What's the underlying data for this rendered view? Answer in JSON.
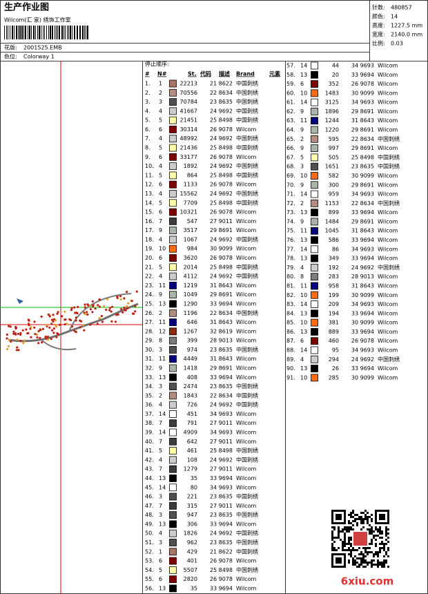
{
  "header": {
    "title": "生产作业图",
    "studio": "Wilcom(汇 家) 绣饰工作室",
    "design_label": "花版:",
    "design": "2001525.EMB",
    "colorway_label": "色位:",
    "colorway": "Colorway 1"
  },
  "info": [
    {
      "label": "针数:",
      "value": "480857"
    },
    {
      "label": "颜色:",
      "value": "14"
    },
    {
      "label": "高度:",
      "value": "1227.5 mm"
    },
    {
      "label": "宽度:",
      "value": "2140.0 mm"
    },
    {
      "label": "比例:",
      "value": "0.03"
    }
  ],
  "table": {
    "caption": "停止顺序:",
    "columns": [
      "#",
      "N#",
      "St.",
      "代码",
      "描述",
      "Brand",
      "元素"
    ],
    "needle_colors": {
      "1": "#a87464",
      "2": "#b48c80",
      "3": "#505050",
      "4": "#cccccc",
      "5": "#ffffa8",
      "6": "#800000",
      "7": "#3c3c3c",
      "8": "#7c7c7c",
      "9": "#a8b4a8",
      "10": "#ff6a10",
      "11": "#000080",
      "12": "#8c2a10",
      "13": "#000000",
      "14": "#ffffff"
    },
    "rows": [
      [
        "1.",
        "1",
        "22213",
        "21 8622",
        "中国刺绣"
      ],
      [
        "2.",
        "2",
        "70556",
        "22 8634",
        "中国刺绣"
      ],
      [
        "3.",
        "3",
        "70784",
        "23 8635",
        "中国刺绣"
      ],
      [
        "4.",
        "4",
        "41667",
        "24 9692",
        "中国刺绣"
      ],
      [
        "5.",
        "5",
        "21451",
        "25 8498",
        "中国刺绣"
      ],
      [
        "6.",
        "6",
        "30314",
        "26 9078",
        "Wilcom"
      ],
      [
        "7.",
        "4",
        "48992",
        "24 9692",
        "中国刺绣"
      ],
      [
        "8.",
        "5",
        "21436",
        "25 8498",
        "中国刺绣"
      ],
      [
        "9.",
        "6",
        "33177",
        "26 9078",
        "Wilcom"
      ],
      [
        "10.",
        "4",
        "1892",
        "24 9692",
        "中国刺绣"
      ],
      [
        "11.",
        "5",
        "864",
        "25 8498",
        "中国刺绣"
      ],
      [
        "12.",
        "6",
        "1133",
        "26 9078",
        "Wilcom"
      ],
      [
        "13.",
        "4",
        "15562",
        "24 9692",
        "中国刺绣"
      ],
      [
        "14.",
        "5",
        "7709",
        "25 8498",
        "中国刺绣"
      ],
      [
        "15.",
        "6",
        "10321",
        "26 9078",
        "Wilcom"
      ],
      [
        "16.",
        "7",
        "547",
        "27 9011",
        "Wilcom"
      ],
      [
        "17.",
        "9",
        "3517",
        "29 8691",
        "Wilcom"
      ],
      [
        "18.",
        "4",
        "1067",
        "24 9692",
        "中国刺绣"
      ],
      [
        "19.",
        "10",
        "984",
        "30 9099",
        "Wilcom"
      ],
      [
        "20.",
        "6",
        "3620",
        "26 9078",
        "Wilcom"
      ],
      [
        "21.",
        "5",
        "2014",
        "25 8498",
        "中国刺绣"
      ],
      [
        "22.",
        "4",
        "4112",
        "24 9692",
        "中国刺绣"
      ],
      [
        "23.",
        "11",
        "1219",
        "31 8643",
        "Wilcom"
      ],
      [
        "24.",
        "9",
        "1049",
        "29 8691",
        "Wilcom"
      ],
      [
        "25.",
        "13",
        "1290",
        "33 9694",
        "Wilcom"
      ],
      [
        "26.",
        "2",
        "1196",
        "22 8634",
        "中国刺绣"
      ],
      [
        "27.",
        "11",
        "646",
        "31 8643",
        "Wilcom"
      ],
      [
        "28.",
        "12",
        "1267",
        "32 8619",
        "Wilcom"
      ],
      [
        "29.",
        "8",
        "399",
        "28 9013",
        "Wilcom"
      ],
      [
        "30.",
        "3",
        "974",
        "23 8635",
        "中国刺绣"
      ],
      [
        "31.",
        "11",
        "4449",
        "31 8643",
        "Wilcom"
      ],
      [
        "32.",
        "9",
        "1418",
        "29 8691",
        "Wilcom"
      ],
      [
        "33.",
        "13",
        "408",
        "33 9694",
        "Wilcom"
      ],
      [
        "34.",
        "3",
        "2474",
        "23 8635",
        "中国刺绣"
      ],
      [
        "35.",
        "2",
        "1843",
        "22 8634",
        "中国刺绣"
      ],
      [
        "36.",
        "4",
        "726",
        "24 9692",
        "中国刺绣"
      ],
      [
        "37.",
        "14",
        "451",
        "34 9693",
        "Wilcom"
      ],
      [
        "38.",
        "7",
        "791",
        "27 9011",
        "Wilcom"
      ],
      [
        "39.",
        "14",
        "4909",
        "34 9693",
        "Wilcom"
      ],
      [
        "40.",
        "7",
        "642",
        "27 9011",
        "Wilcom"
      ],
      [
        "41.",
        "5",
        "461",
        "25 8498",
        "中国刺绣"
      ],
      [
        "42.",
        "4",
        "108",
        "24 9692",
        "中国刺绣"
      ],
      [
        "43.",
        "7",
        "1279",
        "27 9011",
        "Wilcom"
      ],
      [
        "44.",
        "13",
        "35",
        "33 9694",
        "Wilcom"
      ],
      [
        "45.",
        "14",
        "80",
        "34 9693",
        "Wilcom"
      ],
      [
        "46.",
        "3",
        "221",
        "23 8635",
        "中国刺绣"
      ],
      [
        "47.",
        "7",
        "315",
        "27 9011",
        "Wilcom"
      ],
      [
        "48.",
        "3",
        "947",
        "23 8635",
        "中国刺绣"
      ],
      [
        "49.",
        "13",
        "306",
        "33 9694",
        "Wilcom"
      ],
      [
        "50.",
        "4",
        "1826",
        "24 9692",
        "中国刺绣"
      ],
      [
        "51.",
        "3",
        "962",
        "23 8635",
        "中国刺绣"
      ],
      [
        "52.",
        "1",
        "429",
        "21 8622",
        "中国刺绣"
      ],
      [
        "53.",
        "6",
        "401",
        "26 9078",
        "Wilcom"
      ],
      [
        "54.",
        "5",
        "5507",
        "25 8498",
        "中国刺绣"
      ],
      [
        "55.",
        "6",
        "2820",
        "26 9078",
        "Wilcom"
      ],
      [
        "56.",
        "13",
        "35",
        "33 9694",
        "Wilcom"
      ],
      [
        "57.",
        "14",
        "44",
        "34 9693",
        "Wilcom"
      ],
      [
        "58.",
        "13",
        "20",
        "33 9694",
        "Wilcom"
      ],
      [
        "59.",
        "6",
        "352",
        "26 9078",
        "Wilcom"
      ],
      [
        "60.",
        "10",
        "1483",
        "30 9099",
        "Wilcom"
      ],
      [
        "61.",
        "14",
        "3125",
        "34 9693",
        "Wilcom"
      ],
      [
        "62.",
        "9",
        "1896",
        "29 8691",
        "Wilcom"
      ],
      [
        "63.",
        "11",
        "1244",
        "31 8643",
        "Wilcom"
      ],
      [
        "64.",
        "9",
        "1220",
        "29 8691",
        "Wilcom"
      ],
      [
        "65.",
        "2",
        "595",
        "22 8634",
        "中国刺绣"
      ],
      [
        "66.",
        "9",
        "997",
        "29 8691",
        "Wilcom"
      ],
      [
        "67.",
        "5",
        "505",
        "25 8498",
        "中国刺绣"
      ],
      [
        "68.",
        "3",
        "1651",
        "23 8635",
        "中国刺绣"
      ],
      [
        "69.",
        "10",
        "582",
        "30 9099",
        "Wilcom"
      ],
      [
        "70.",
        "9",
        "300",
        "29 8691",
        "Wilcom"
      ],
      [
        "71.",
        "14",
        "959",
        "34 9693",
        "Wilcom"
      ],
      [
        "72.",
        "2",
        "1153",
        "22 8634",
        "中国刺绣"
      ],
      [
        "73.",
        "13",
        "899",
        "33 9694",
        "Wilcom"
      ],
      [
        "74.",
        "9",
        "1484",
        "29 8691",
        "Wilcom"
      ],
      [
        "75.",
        "11",
        "1045",
        "31 8643",
        "Wilcom"
      ],
      [
        "76.",
        "13",
        "586",
        "33 9694",
        "Wilcom"
      ],
      [
        "77.",
        "14",
        "86",
        "34 9693",
        "Wilcom"
      ],
      [
        "78.",
        "13",
        "349",
        "33 9694",
        "Wilcom"
      ],
      [
        "79.",
        "4",
        "192",
        "24 9692",
        "中国刺绣"
      ],
      [
        "80.",
        "8",
        "283",
        "28 9013",
        "Wilcom"
      ],
      [
        "81.",
        "11",
        "958",
        "31 8643",
        "Wilcom"
      ],
      [
        "82.",
        "10",
        "199",
        "30 9099",
        "Wilcom"
      ],
      [
        "83.",
        "14",
        "209",
        "34 9693",
        "Wilcom"
      ],
      [
        "84.",
        "13",
        "194",
        "33 9694",
        "Wilcom"
      ],
      [
        "85.",
        "10",
        "381",
        "30 9099",
        "Wilcom"
      ],
      [
        "86.",
        "13",
        "889",
        "33 9694",
        "Wilcom"
      ],
      [
        "87.",
        "6",
        "460",
        "26 9078",
        "Wilcom"
      ],
      [
        "88.",
        "14",
        "95",
        "34 9693",
        "Wilcom"
      ],
      [
        "89.",
        "4",
        "294",
        "24 9692",
        "中国刺绣"
      ],
      [
        "90.",
        "13",
        "26",
        "33 9694",
        "Wilcom"
      ],
      [
        "91.",
        "10",
        "285",
        "30 9099",
        "Wilcom"
      ]
    ]
  },
  "watermark": "6xiu.com"
}
